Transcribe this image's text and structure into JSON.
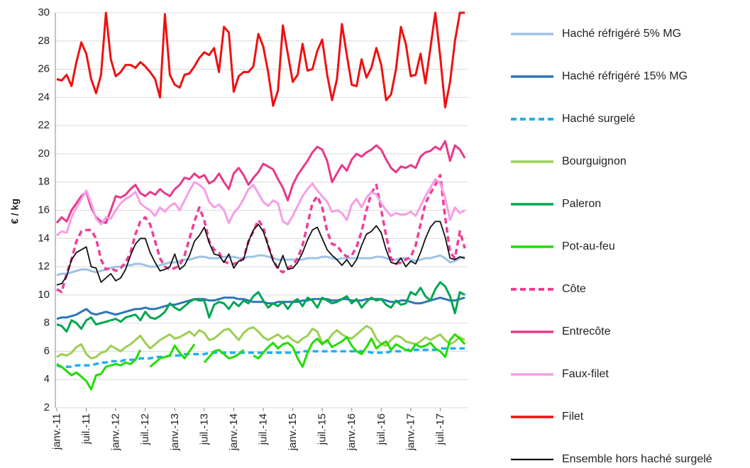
{
  "chart_data": {
    "type": "line",
    "y_label": "€ / kg",
    "categories": [
      "janv.-11",
      null,
      null,
      null,
      null,
      null,
      "juil.-11",
      null,
      null,
      null,
      null,
      null,
      "janv.-12",
      null,
      null,
      null,
      null,
      null,
      "juil.-12",
      null,
      null,
      null,
      null,
      null,
      "janv.-13",
      null,
      null,
      null,
      null,
      null,
      "juil.-13",
      null,
      null,
      null,
      null,
      null,
      "janv.-14",
      null,
      null,
      null,
      null,
      null,
      "juil.-14",
      null,
      null,
      null,
      null,
      null,
      "janv.-15",
      null,
      null,
      null,
      null,
      null,
      "juil.-15",
      null,
      null,
      null,
      null,
      null,
      "janv.-16",
      null,
      null,
      null,
      null,
      null,
      "juil.-16",
      null,
      null,
      null,
      null,
      null,
      "janv.-17",
      null,
      null,
      null,
      null,
      null,
      "juil.-17",
      null,
      null,
      null,
      null,
      null
    ],
    "ylim": [
      2,
      30
    ],
    "yticks": [
      2,
      4,
      6,
      8,
      10,
      12,
      14,
      16,
      18,
      20,
      22,
      24,
      26,
      28,
      30
    ],
    "grid": true,
    "series": [
      {
        "name": "Haché réfrigéré 5% MG",
        "color": "#9dc3e6",
        "style": "solid",
        "values": [
          11.4,
          11.5,
          11.5,
          11.6,
          11.7,
          11.8,
          11.8,
          11.7,
          11.6,
          11.7,
          11.8,
          11.9,
          12.0,
          12.0,
          12.1,
          12.1,
          12.2,
          12.2,
          12.1,
          12.0,
          12.0,
          12.1,
          12.2,
          12.3,
          12.3,
          12.4,
          12.5,
          12.5,
          12.6,
          12.7,
          12.7,
          12.6,
          12.6,
          12.6,
          12.7,
          12.7,
          12.7,
          12.6,
          12.6,
          12.7,
          12.7,
          12.8,
          12.8,
          12.7,
          12.6,
          12.5,
          12.5,
          12.5,
          12.5,
          12.5,
          12.5,
          12.6,
          12.6,
          12.6,
          12.7,
          12.7,
          12.6,
          12.5,
          12.6,
          12.6,
          12.6,
          12.6,
          12.6,
          12.6,
          12.6,
          12.7,
          12.7,
          12.6,
          12.5,
          12.5,
          12.6,
          12.6,
          12.5,
          12.4,
          12.5,
          12.6,
          12.6,
          12.7,
          12.8,
          12.6,
          12.3,
          12.4,
          12.6,
          12.7
        ]
      },
      {
        "name": "Haché réfrigéré 15% MG",
        "color": "#2e75b6",
        "style": "solid",
        "values": [
          8.3,
          8.4,
          8.4,
          8.5,
          8.6,
          8.8,
          9.0,
          8.7,
          8.6,
          8.7,
          8.8,
          8.7,
          8.6,
          8.7,
          8.8,
          8.9,
          9.0,
          9.0,
          9.1,
          9.0,
          9.0,
          9.1,
          9.2,
          9.3,
          9.3,
          9.4,
          9.5,
          9.6,
          9.7,
          9.7,
          9.7,
          9.6,
          9.6,
          9.7,
          9.8,
          9.8,
          9.8,
          9.7,
          9.7,
          9.6,
          9.5,
          9.5,
          9.5,
          9.4,
          9.4,
          9.5,
          9.5,
          9.5,
          9.5,
          9.5,
          9.6,
          9.6,
          9.7,
          9.7,
          9.7,
          9.7,
          9.6,
          9.6,
          9.7,
          9.7,
          9.6,
          9.6,
          9.6,
          9.7,
          9.7,
          9.7,
          9.7,
          9.6,
          9.5,
          9.5,
          9.6,
          9.6,
          9.5,
          9.4,
          9.4,
          9.5,
          9.6,
          9.7,
          9.8,
          9.7,
          9.6,
          9.6,
          9.7,
          9.8
        ]
      },
      {
        "name": "Haché surgelé",
        "color": "#1fb0f0",
        "style": "dashed",
        "values": [
          5.0,
          4.9,
          4.9,
          4.9,
          5.0,
          5.0,
          5.0,
          5.0,
          5.1,
          5.2,
          5.2,
          5.3,
          5.3,
          5.3,
          5.4,
          5.4,
          5.4,
          5.5,
          5.5,
          5.5,
          5.6,
          5.6,
          5.6,
          5.7,
          5.7,
          5.7,
          5.8,
          5.8,
          5.8,
          5.8,
          5.8,
          5.9,
          5.9,
          5.9,
          5.9,
          5.9,
          5.9,
          5.9,
          5.9,
          5.9,
          5.9,
          5.9,
          5.9,
          5.9,
          5.9,
          5.9,
          5.9,
          5.9,
          5.9,
          5.9,
          6.0,
          6.0,
          6.0,
          6.0,
          6.0,
          6.0,
          6.0,
          6.0,
          6.0,
          6.0,
          6.0,
          6.0,
          6.0,
          6.0,
          5.9,
          5.9,
          5.9,
          5.9,
          6.0,
          6.0,
          6.0,
          6.1,
          6.1,
          6.1,
          6.1,
          6.1,
          6.1,
          6.1,
          6.2,
          6.2,
          6.2,
          6.2,
          6.2,
          6.2
        ]
      },
      {
        "name": "Bourguignon",
        "color": "#9bcf53",
        "style": "solid",
        "values": [
          5.6,
          5.8,
          5.7,
          5.9,
          6.3,
          6.5,
          5.8,
          5.5,
          5.6,
          5.9,
          6.0,
          6.4,
          6.2,
          6.0,
          6.3,
          6.5,
          6.8,
          7.1,
          6.6,
          6.2,
          6.5,
          6.8,
          7.0,
          7.2,
          6.9,
          7.0,
          7.2,
          7.4,
          7.1,
          7.5,
          7.3,
          6.8,
          6.9,
          7.2,
          7.5,
          7.6,
          7.2,
          6.8,
          7.3,
          7.6,
          7.7,
          7.4,
          7.0,
          6.8,
          7.0,
          7.2,
          6.9,
          7.1,
          6.8,
          6.6,
          6.9,
          7.1,
          7.6,
          7.4,
          6.6,
          6.7,
          7.2,
          7.5,
          7.2,
          7.0,
          6.9,
          7.2,
          7.5,
          7.8,
          7.6,
          6.9,
          6.5,
          6.4,
          6.8,
          7.1,
          7.0,
          6.7,
          6.6,
          6.5,
          6.7,
          7.0,
          6.8,
          7.0,
          7.2,
          6.8,
          6.5,
          6.7,
          7.0,
          6.8
        ]
      },
      {
        "name": "Paleron",
        "color": "#00a650",
        "style": "solid",
        "values": [
          7.9,
          7.8,
          7.4,
          8.2,
          8.0,
          7.6,
          8.2,
          8.4,
          7.9,
          8.0,
          8.1,
          8.2,
          8.3,
          8.1,
          8.4,
          8.5,
          8.6,
          8.2,
          8.8,
          8.4,
          8.3,
          8.5,
          8.8,
          9.4,
          9.1,
          8.9,
          9.2,
          9.5,
          9.7,
          9.6,
          9.6,
          8.4,
          9.3,
          9.5,
          9.4,
          9.0,
          9.5,
          9.2,
          9.6,
          9.4,
          9.9,
          10.2,
          9.6,
          9.1,
          9.4,
          9.2,
          9.5,
          9.0,
          9.5,
          9.7,
          9.2,
          9.8,
          9.6,
          9.1,
          9.8,
          9.6,
          9.4,
          9.5,
          9.7,
          9.9,
          9.4,
          9.7,
          9.1,
          9.5,
          9.8,
          9.6,
          9.7,
          9.3,
          9.1,
          9.6,
          9.3,
          9.4,
          10.2,
          10.0,
          10.5,
          9.9,
          9.6,
          10.4,
          10.9,
          10.6,
          9.9,
          8.7,
          10.2,
          10.0
        ]
      },
      {
        "name": "Pot-au-feu",
        "color": "#22dd00",
        "style": "solid",
        "values": [
          5.1,
          4.9,
          4.6,
          4.3,
          4.5,
          4.2,
          3.9,
          3.3,
          4.3,
          4.4,
          4.9,
          5.0,
          5.1,
          5.0,
          5.2,
          5.1,
          5.4,
          6.1,
          null,
          4.9,
          5.2,
          5.5,
          5.6,
          5.7,
          6.4,
          5.9,
          5.5,
          6.0,
          6.5,
          null,
          5.2,
          5.6,
          6.0,
          6.1,
          5.8,
          5.5,
          5.6,
          5.8,
          6.1,
          null,
          5.7,
          5.5,
          5.9,
          6.3,
          6.6,
          6.2,
          6.5,
          6.6,
          6.3,
          5.5,
          4.9,
          5.9,
          6.6,
          6.9,
          6.5,
          6.8,
          6.3,
          6.5,
          6.7,
          7.0,
          6.4,
          6.0,
          5.8,
          6.3,
          6.9,
          6.2,
          6.5,
          6.7,
          6.1,
          6.5,
          6.3,
          6.1,
          6.0,
          6.5,
          6.3,
          6.4,
          6.6,
          6.2,
          6.0,
          5.6,
          6.8,
          7.2,
          6.9,
          6.5
        ]
      },
      {
        "name": "Côte",
        "color": "#ee3e9a",
        "style": "dashed",
        "values": [
          10.4,
          10.2,
          11.5,
          12.5,
          13.8,
          14.5,
          14.6,
          14.6,
          14.0,
          12.5,
          11.8,
          11.9,
          11.7,
          11.9,
          12.3,
          13.0,
          14.3,
          15.2,
          15.5,
          15.0,
          13.8,
          12.6,
          12.0,
          11.8,
          11.9,
          12.1,
          12.8,
          14.0,
          15.2,
          16.2,
          15.3,
          13.8,
          13.2,
          13.0,
          12.4,
          12.2,
          12.2,
          12.3,
          12.6,
          13.8,
          14.5,
          15.3,
          14.8,
          13.5,
          12.5,
          11.8,
          11.6,
          11.9,
          12.1,
          12.6,
          13.5,
          15.0,
          16.5,
          17.0,
          16.2,
          14.5,
          13.6,
          13.5,
          13.0,
          12.7,
          12.8,
          13.4,
          14.5,
          16.0,
          17.2,
          17.8,
          16.0,
          14.2,
          12.6,
          12.2,
          12.3,
          12.5,
          12.7,
          13.5,
          15.0,
          16.5,
          17.2,
          17.8,
          18.5,
          15.5,
          13.0,
          12.6,
          14.5,
          13.3
        ]
      },
      {
        "name": "Entrecôte",
        "color": "#e8388a",
        "style": "solid",
        "values": [
          15.1,
          15.5,
          15.2,
          16.0,
          16.5,
          17.0,
          17.3,
          16.2,
          15.5,
          15.2,
          15.1,
          16.0,
          17.0,
          16.9,
          17.1,
          17.5,
          17.8,
          17.2,
          17.0,
          17.3,
          17.1,
          17.5,
          17.2,
          17.0,
          17.5,
          17.8,
          18.3,
          18.2,
          18.6,
          18.3,
          18.5,
          17.9,
          18.1,
          18.6,
          18.0,
          17.5,
          18.6,
          19.0,
          18.5,
          17.8,
          18.3,
          18.7,
          19.3,
          19.1,
          18.9,
          18.2,
          17.6,
          16.7,
          17.8,
          18.5,
          19.0,
          19.5,
          20.1,
          20.5,
          20.3,
          19.5,
          18.0,
          18.6,
          19.2,
          18.8,
          19.6,
          20.0,
          19.8,
          20.1,
          20.3,
          20.6,
          20.3,
          19.6,
          19.0,
          18.7,
          19.1,
          19.0,
          19.2,
          19.0,
          19.8,
          20.1,
          20.2,
          20.5,
          20.3,
          20.9,
          19.5,
          20.6,
          20.3,
          19.7
        ]
      },
      {
        "name": "Faux-filet",
        "color": "#f59ee6",
        "style": "solid",
        "values": [
          14.2,
          14.5,
          14.4,
          15.5,
          16.2,
          16.8,
          17.4,
          16.5,
          15.4,
          15.0,
          15.5,
          15.4,
          16.0,
          16.5,
          16.8,
          17.0,
          17.3,
          16.5,
          16.2,
          16.0,
          15.6,
          16.2,
          15.9,
          16.3,
          16.5,
          16.0,
          16.7,
          17.4,
          18.0,
          17.8,
          17.5,
          16.6,
          16.2,
          16.4,
          16.0,
          15.1,
          15.8,
          16.2,
          16.8,
          17.5,
          17.8,
          17.2,
          16.6,
          16.3,
          16.7,
          16.5,
          15.2,
          15.0,
          15.6,
          16.3,
          17.0,
          17.5,
          17.9,
          17.4,
          17.0,
          16.6,
          15.9,
          16.0,
          15.8,
          15.3,
          16.4,
          16.8,
          16.2,
          16.9,
          17.3,
          17.1,
          16.5,
          16.0,
          15.6,
          15.8,
          15.7,
          15.7,
          15.9,
          15.6,
          16.3,
          17.0,
          17.6,
          18.2,
          17.9,
          16.9,
          15.3,
          16.2,
          15.8,
          16.0
        ]
      },
      {
        "name": "Filet",
        "color": "#ee1111",
        "style": "solid",
        "values": [
          25.3,
          25.2,
          25.6,
          24.8,
          26.5,
          27.9,
          27.1,
          25.3,
          24.3,
          25.6,
          30.0,
          26.7,
          25.5,
          25.8,
          26.3,
          26.3,
          26.1,
          26.5,
          26.2,
          25.8,
          25.3,
          24.0,
          29.9,
          25.6,
          24.9,
          24.7,
          25.6,
          25.7,
          26.2,
          26.8,
          27.2,
          27.0,
          27.5,
          25.8,
          29.0,
          28.6,
          24.4,
          25.5,
          25.8,
          25.8,
          26.2,
          28.5,
          27.6,
          25.8,
          23.4,
          24.5,
          29.1,
          27.1,
          25.1,
          25.6,
          27.8,
          25.9,
          26.0,
          27.3,
          28.1,
          25.6,
          23.8,
          25.3,
          29.2,
          27.0,
          24.9,
          24.8,
          26.7,
          25.4,
          26.1,
          27.5,
          26.3,
          23.8,
          24.2,
          26.0,
          29.0,
          27.8,
          25.5,
          25.6,
          27.1,
          25.0,
          27.5,
          30.0,
          26.9,
          23.3,
          25.1,
          28.0,
          30.0,
          30.0
        ]
      },
      {
        "name": "Ensemble hors haché surgelé",
        "color": "#111111",
        "style": "thin",
        "values": [
          10.7,
          10.8,
          11.3,
          12.5,
          13.0,
          13.2,
          13.4,
          12.0,
          11.9,
          10.9,
          11.2,
          11.5,
          11.0,
          11.2,
          11.8,
          12.8,
          13.6,
          14.0,
          14.0,
          13.0,
          12.3,
          11.7,
          11.8,
          12.0,
          12.9,
          11.8,
          12.1,
          12.8,
          13.8,
          14.2,
          14.8,
          13.7,
          12.9,
          12.8,
          12.3,
          12.9,
          11.9,
          12.4,
          12.5,
          13.8,
          14.6,
          15.0,
          14.5,
          13.5,
          12.4,
          11.9,
          12.8,
          11.8,
          11.9,
          12.3,
          13.0,
          13.9,
          14.6,
          14.8,
          14.0,
          13.2,
          12.8,
          12.5,
          12.1,
          12.5,
          12.0,
          12.5,
          13.5,
          14.3,
          14.5,
          14.9,
          14.4,
          13.2,
          12.3,
          12.2,
          12.6,
          12.0,
          12.4,
          12.2,
          13.0,
          14.0,
          14.8,
          15.2,
          15.2,
          14.1,
          12.6,
          12.5,
          12.7,
          12.6
        ]
      }
    ]
  }
}
